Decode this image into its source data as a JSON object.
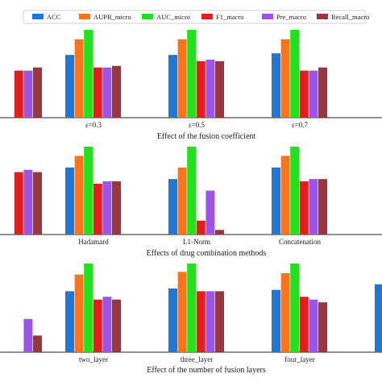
{
  "legend": [
    "ACC",
    "AUPR_micro",
    "AUC_micro",
    "F1_macro",
    "Pre_macro",
    "Recall_macro"
  ],
  "colors": [
    "#1f77d4",
    "#ff7417",
    "#22e01e",
    "#e0201e",
    "#9c55e6",
    "#98373d"
  ],
  "chart_data": [
    {
      "type": "bar",
      "title": "Effect of the fusion coefficient",
      "categories": [
        "",
        "ε=0.3",
        "ε=0.5",
        "ε=0.7",
        ""
      ],
      "series": [
        {
          "name": "ACC",
          "values": [
            null,
            0.9,
            0.9,
            0.905,
            null
          ]
        },
        {
          "name": "AUPR_micro",
          "values": [
            null,
            0.95,
            0.95,
            0.95,
            null
          ]
        },
        {
          "name": "AUC_micro",
          "values": [
            null,
            0.98,
            0.98,
            0.98,
            null
          ]
        },
        {
          "name": "F1_macro",
          "values": [
            0.85,
            0.86,
            0.88,
            0.85,
            null
          ]
        },
        {
          "name": "Pre_macro",
          "values": [
            0.85,
            0.86,
            0.885,
            0.85,
            null
          ]
        },
        {
          "name": "Recall_macro",
          "values": [
            0.86,
            0.865,
            0.88,
            0.86,
            null
          ]
        }
      ],
      "ylim": [
        0.7,
        0.98
      ]
    },
    {
      "type": "bar",
      "title": "Effects of drug combination methods",
      "categories": [
        "",
        "Hadamard",
        "L1-Norm",
        "Concatenation",
        ""
      ],
      "series": [
        {
          "name": "ACC",
          "values": [
            null,
            0.89,
            0.84,
            0.89,
            null
          ]
        },
        {
          "name": "AUPR_micro",
          "values": [
            null,
            0.94,
            0.89,
            0.94,
            null
          ]
        },
        {
          "name": "AUC_micro",
          "values": [
            null,
            0.98,
            0.98,
            0.98,
            null
          ]
        },
        {
          "name": "F1_macro",
          "values": [
            0.87,
            0.82,
            0.66,
            0.83,
            null
          ]
        },
        {
          "name": "Pre_macro",
          "values": [
            0.88,
            0.83,
            0.79,
            0.84,
            null
          ]
        },
        {
          "name": "Recall_macro",
          "values": [
            0.87,
            0.83,
            0.62,
            0.84,
            null
          ]
        }
      ],
      "ylim": [
        0.6,
        0.98
      ]
    },
    {
      "type": "bar",
      "title": "Effect of the number of fusion layers",
      "categories": [
        "",
        "two_layer",
        "three_layer",
        "four_layer",
        ""
      ],
      "series": [
        {
          "name": "ACC",
          "values": [
            null,
            0.88,
            0.89,
            0.885,
            0.905
          ]
        },
        {
          "name": "AUPR_micro",
          "values": [
            null,
            0.94,
            0.95,
            0.945,
            null
          ]
        },
        {
          "name": "AUC_micro",
          "values": [
            null,
            0.98,
            0.98,
            0.98,
            null
          ]
        },
        {
          "name": "F1_macro",
          "values": [
            null,
            0.85,
            0.88,
            0.86,
            null
          ]
        },
        {
          "name": "Pre_macro",
          "values": [
            0.78,
            0.86,
            0.88,
            0.85,
            null
          ]
        },
        {
          "name": "Recall_macro",
          "values": [
            0.72,
            0.85,
            0.88,
            0.84,
            null
          ]
        }
      ],
      "ylim": [
        0.66,
        0.98
      ]
    }
  ]
}
